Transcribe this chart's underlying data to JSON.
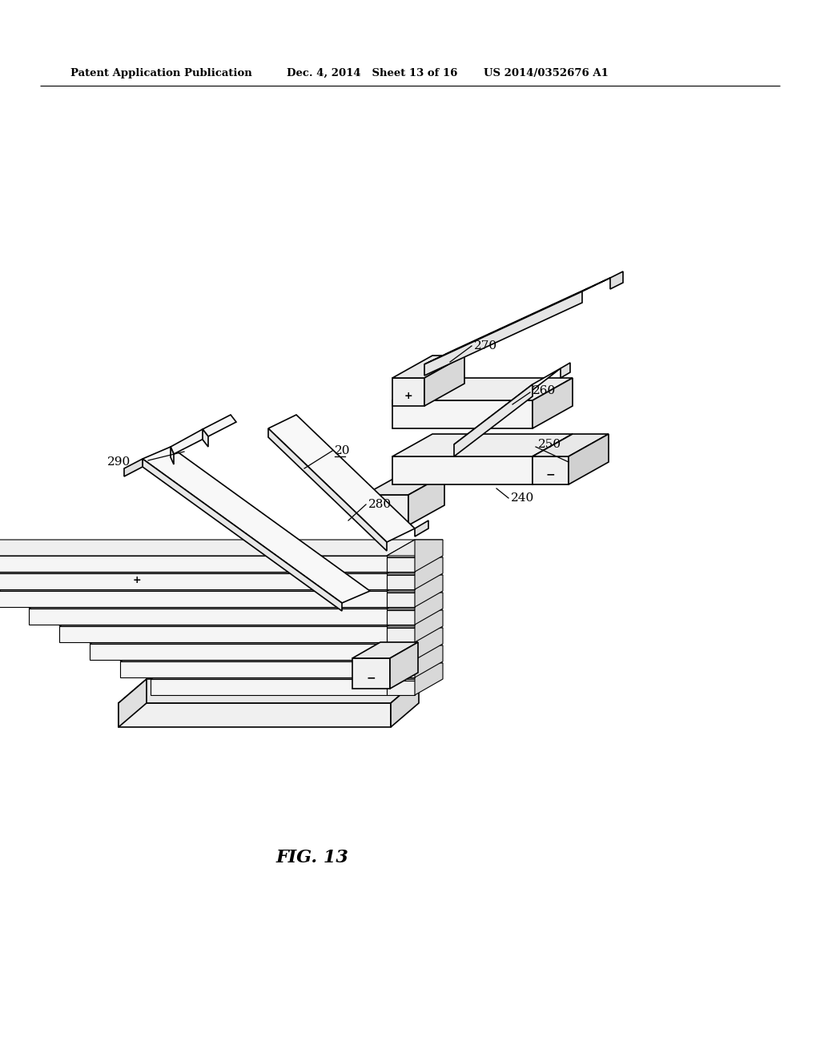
{
  "bg_color": "#ffffff",
  "line_color": "#000000",
  "header_left": "Patent Application Publication",
  "header_mid": "Dec. 4, 2014   Sheet 13 of 16",
  "header_right": "US 2014/0352676 A1",
  "fig_label": "FIG. 13",
  "lw_main": 1.2,
  "lw_thin": 0.8
}
